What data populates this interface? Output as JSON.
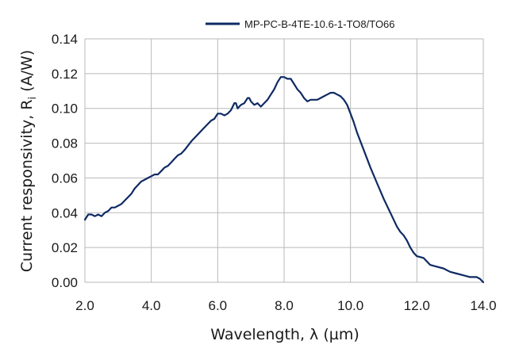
{
  "chart_data": {
    "type": "line",
    "title": "",
    "xlabel": "Wavelength, λ (µm)",
    "ylabel_main": "Current responsivity, R",
    "ylabel_sub": "i",
    "ylabel_unit": " (A/W)",
    "xlim": [
      2.0,
      14.0
    ],
    "ylim": [
      0.0,
      0.14
    ],
    "x_ticks": [
      "2.0",
      "4.0",
      "6.0",
      "8.0",
      "10.0",
      "12.0",
      "14.0"
    ],
    "y_ticks": [
      "0.00",
      "0.02",
      "0.04",
      "0.06",
      "0.08",
      "0.10",
      "0.12",
      "0.14"
    ],
    "grid": true,
    "legend_position": "top-right",
    "series": [
      {
        "name": "MP-PC-B-4TE-10.6-1-TO8/TO66",
        "color": "#0f2a63",
        "x": [
          2.0,
          2.1,
          2.2,
          2.3,
          2.4,
          2.5,
          2.6,
          2.7,
          2.8,
          2.9,
          3.0,
          3.1,
          3.2,
          3.3,
          3.4,
          3.5,
          3.6,
          3.7,
          3.8,
          3.9,
          4.0,
          4.1,
          4.2,
          4.3,
          4.4,
          4.5,
          4.6,
          4.7,
          4.8,
          4.9,
          5.0,
          5.2,
          5.4,
          5.6,
          5.8,
          5.9,
          6.0,
          6.1,
          6.2,
          6.3,
          6.4,
          6.5,
          6.55,
          6.6,
          6.7,
          6.8,
          6.9,
          6.95,
          7.0,
          7.1,
          7.2,
          7.3,
          7.4,
          7.5,
          7.6,
          7.7,
          7.8,
          7.9,
          8.0,
          8.1,
          8.2,
          8.3,
          8.4,
          8.5,
          8.6,
          8.7,
          8.8,
          8.9,
          9.0,
          9.1,
          9.2,
          9.3,
          9.4,
          9.5,
          9.6,
          9.7,
          9.8,
          9.9,
          10.0,
          10.1,
          10.2,
          10.4,
          10.6,
          10.8,
          11.0,
          11.2,
          11.4,
          11.5,
          11.6,
          11.7,
          11.8,
          11.9,
          12.0,
          12.2,
          12.4,
          12.6,
          12.8,
          13.0,
          13.2,
          13.4,
          13.6,
          13.8,
          13.9,
          14.0
        ],
        "values": [
          0.036,
          0.039,
          0.039,
          0.038,
          0.039,
          0.038,
          0.04,
          0.041,
          0.043,
          0.043,
          0.044,
          0.045,
          0.047,
          0.049,
          0.051,
          0.054,
          0.056,
          0.058,
          0.059,
          0.06,
          0.061,
          0.062,
          0.062,
          0.064,
          0.066,
          0.067,
          0.069,
          0.071,
          0.073,
          0.074,
          0.076,
          0.081,
          0.085,
          0.089,
          0.093,
          0.094,
          0.097,
          0.097,
          0.096,
          0.097,
          0.099,
          0.103,
          0.103,
          0.1,
          0.102,
          0.103,
          0.106,
          0.106,
          0.104,
          0.102,
          0.103,
          0.101,
          0.103,
          0.105,
          0.108,
          0.111,
          0.115,
          0.118,
          0.118,
          0.117,
          0.117,
          0.114,
          0.111,
          0.109,
          0.106,
          0.104,
          0.105,
          0.105,
          0.105,
          0.106,
          0.107,
          0.108,
          0.109,
          0.109,
          0.108,
          0.107,
          0.105,
          0.102,
          0.097,
          0.092,
          0.086,
          0.076,
          0.066,
          0.057,
          0.048,
          0.04,
          0.032,
          0.029,
          0.027,
          0.024,
          0.02,
          0.017,
          0.015,
          0.014,
          0.01,
          0.009,
          0.008,
          0.006,
          0.005,
          0.004,
          0.003,
          0.003,
          0.002,
          0.0
        ]
      }
    ]
  }
}
